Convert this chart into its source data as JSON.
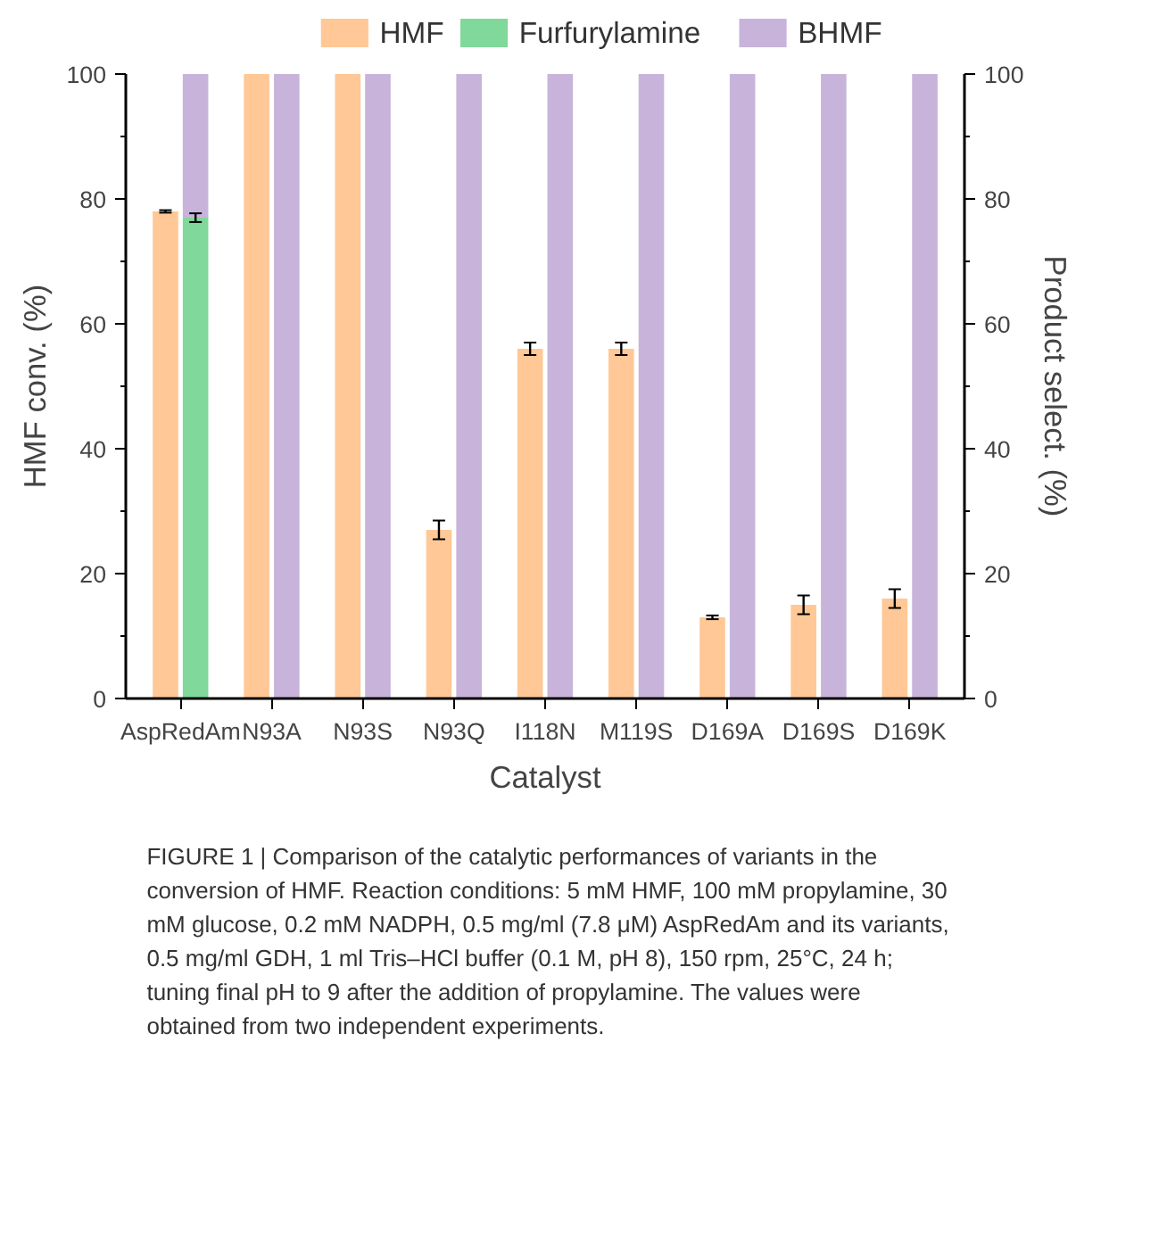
{
  "chart_data": {
    "type": "bar",
    "xlabel": "Catalyst",
    "ylabel": "HMF conv. (%)",
    "y2label": "Product select. (%)",
    "categories": [
      "AspRedAm",
      "N93A",
      "N93S",
      "N93Q",
      "I118N",
      "M119S",
      "D169A",
      "D169S",
      "D169K"
    ],
    "series": [
      {
        "name": "HMF",
        "color": "#ffc896",
        "values": [
          78,
          100,
          100,
          27,
          56,
          56,
          13,
          15,
          16
        ],
        "errors": [
          0.2,
          null,
          null,
          1.5,
          1,
          1,
          0.3,
          1.5,
          1.5
        ]
      },
      {
        "name": "Furfurylamine",
        "color": "#80d89a",
        "axis": "y2",
        "values": [
          77,
          null,
          null,
          null,
          null,
          null,
          null,
          null,
          null
        ],
        "errors": [
          0.7,
          null,
          null,
          null,
          null,
          null,
          null,
          null,
          null
        ]
      },
      {
        "name": "BHMF",
        "color": "#c8b4da",
        "axis": "y2",
        "values": [
          23,
          100,
          100,
          100,
          100,
          100,
          100,
          100,
          100
        ]
      }
    ],
    "stacked": true,
    "ylim": [
      0,
      100
    ],
    "yticks": [
      0,
      {
        "value": 10,
        "label": null
      },
      20,
      {
        "value": 30,
        "label": null
      },
      40,
      {
        "value": 50,
        "label": null
      },
      60,
      {
        "value": 70,
        "label": null
      },
      80,
      {
        "value": 90,
        "label": null
      },
      100
    ],
    "y2lim": [
      0,
      100
    ],
    "y2ticks": [
      0,
      {
        "value": 10,
        "label": null
      },
      20,
      {
        "value": 30,
        "label": null
      },
      40,
      {
        "value": 50,
        "label": null
      },
      60,
      {
        "value": 70,
        "label": null
      },
      80,
      {
        "value": 90,
        "label": null
      },
      100
    ],
    "legend": "top",
    "grid": false,
    "annotations": [
      "FIGURE 1 | Comparison of the catalytic performances of variants in the conversion of HMF. Reaction conditions: 5 mM HMF, 100 mM propylamine, 30 mM glucose, 0.2 mM NADPH, 0.5 mg/ml (7.8 μM) AspRedAm and its variants, 0.5 mg/ml GDH, 1 ml Tris–HCl buffer (0.1 M, pH 8), 150 rpm, 25°C, 24 h; tuning final pH to 9 after the addition of propylamine. The values were obtained from two independent experiments."
    ]
  }
}
